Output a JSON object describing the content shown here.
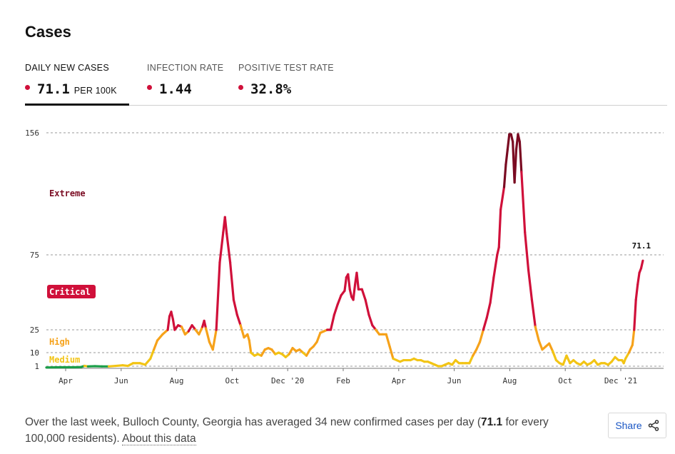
{
  "page": {
    "title": "Cases"
  },
  "metrics": [
    {
      "label": "DAILY NEW CASES",
      "value": "71.1",
      "unit": "PER 100K",
      "active": true
    },
    {
      "label": "INFECTION RATE",
      "value": "1.44",
      "unit": "",
      "active": false
    },
    {
      "label": "POSITIVE TEST RATE",
      "value": "32.8%",
      "unit": "",
      "active": false
    }
  ],
  "colors": {
    "accent": "#d0103a",
    "extreme": "#7a0b22",
    "critical": "#d0103a",
    "high": "#f6a21a",
    "medium": "#f2c415",
    "low": "#1a9e48"
  },
  "chart_data": {
    "type": "line",
    "y_ticks": [
      1,
      10,
      25,
      75,
      156
    ],
    "y_range": [
      0,
      156
    ],
    "x_ticks": [
      "Apr",
      "Jun",
      "Aug",
      "Oct",
      "Dec '20",
      "Feb",
      "Apr",
      "Jun",
      "Aug",
      "Oct",
      "Dec '21"
    ],
    "zones": [
      {
        "name": "Extreme",
        "color": "#7a0b22"
      },
      {
        "name": "Critical",
        "color": "#d0103a"
      },
      {
        "name": "High",
        "color": "#f6a21a"
      },
      {
        "name": "Medium",
        "color": "#f2c415"
      }
    ],
    "end_label": "71.1",
    "series": [
      {
        "values": [
          [
            0,
            0.4
          ],
          [
            8,
            0.5
          ],
          [
            16,
            0.5
          ],
          [
            20,
            0.6
          ],
          [
            22,
            1.2
          ],
          [
            24,
            0.9
          ],
          [
            28,
            1.0
          ],
          [
            32,
            0.9
          ],
          [
            36,
            0.9
          ],
          [
            40,
            1.2
          ],
          [
            44,
            1.6
          ],
          [
            47,
            1.2
          ],
          [
            50,
            3
          ],
          [
            54,
            3
          ],
          [
            57,
            2
          ],
          [
            60,
            6
          ],
          [
            62,
            12
          ],
          [
            64,
            18
          ],
          [
            67,
            22
          ],
          [
            70,
            25
          ],
          [
            71,
            34
          ],
          [
            72,
            37
          ],
          [
            73,
            32
          ],
          [
            74,
            25
          ],
          [
            76,
            28
          ],
          [
            78,
            27
          ],
          [
            80,
            22
          ],
          [
            82,
            24
          ],
          [
            84,
            28
          ],
          [
            86,
            25
          ],
          [
            88,
            22
          ],
          [
            90,
            27
          ],
          [
            91,
            31
          ],
          [
            92,
            26
          ],
          [
            94,
            17
          ],
          [
            96,
            12
          ],
          [
            98,
            25
          ],
          [
            100,
            70
          ],
          [
            102,
            90
          ],
          [
            103,
            100
          ],
          [
            104,
            89
          ],
          [
            106,
            70
          ],
          [
            108,
            45
          ],
          [
            110,
            35
          ],
          [
            112,
            28
          ],
          [
            114,
            20
          ],
          [
            116,
            22
          ],
          [
            117,
            18
          ],
          [
            118,
            10
          ],
          [
            120,
            8
          ],
          [
            122,
            9
          ],
          [
            124,
            8
          ],
          [
            126,
            12
          ],
          [
            128,
            13
          ],
          [
            130,
            12
          ],
          [
            132,
            9
          ],
          [
            134,
            10
          ],
          [
            136,
            9
          ],
          [
            138,
            7
          ],
          [
            140,
            9
          ],
          [
            142,
            13
          ],
          [
            144,
            11
          ],
          [
            146,
            12
          ],
          [
            148,
            10
          ],
          [
            150,
            8
          ],
          [
            152,
            12
          ],
          [
            154,
            14
          ],
          [
            156,
            17
          ],
          [
            158,
            23
          ],
          [
            160,
            24
          ],
          [
            162,
            25
          ],
          [
            164,
            25
          ],
          [
            166,
            35
          ],
          [
            168,
            42
          ],
          [
            170,
            48
          ],
          [
            172,
            51
          ],
          [
            173,
            60
          ],
          [
            174,
            62
          ],
          [
            175,
            52
          ],
          [
            176,
            47
          ],
          [
            177,
            45
          ],
          [
            178,
            55
          ],
          [
            179,
            63
          ],
          [
            180,
            52
          ],
          [
            182,
            52
          ],
          [
            184,
            45
          ],
          [
            186,
            35
          ],
          [
            188,
            28
          ],
          [
            190,
            25
          ],
          [
            192,
            22
          ],
          [
            194,
            22
          ],
          [
            196,
            22
          ],
          [
            198,
            14
          ],
          [
            200,
            6
          ],
          [
            202,
            5
          ],
          [
            204,
            4
          ],
          [
            206,
            5
          ],
          [
            208,
            5
          ],
          [
            210,
            5
          ],
          [
            212,
            6
          ],
          [
            214,
            5
          ],
          [
            216,
            5
          ],
          [
            218,
            4
          ],
          [
            220,
            4
          ],
          [
            222,
            3
          ],
          [
            224,
            2
          ],
          [
            226,
            1
          ],
          [
            228,
            1
          ],
          [
            230,
            2
          ],
          [
            232,
            3
          ],
          [
            234,
            2
          ],
          [
            236,
            5
          ],
          [
            238,
            3
          ],
          [
            240,
            3
          ],
          [
            242,
            3
          ],
          [
            244,
            3
          ],
          [
            246,
            8
          ],
          [
            248,
            12
          ],
          [
            250,
            17
          ],
          [
            252,
            25
          ],
          [
            254,
            33
          ],
          [
            256,
            43
          ],
          [
            258,
            60
          ],
          [
            260,
            75
          ],
          [
            261,
            80
          ],
          [
            262,
            105
          ],
          [
            264,
            120
          ],
          [
            265,
            135
          ],
          [
            266,
            145
          ],
          [
            267,
            155
          ],
          [
            268,
            155
          ],
          [
            269,
            150
          ],
          [
            270,
            123
          ],
          [
            271,
            145
          ],
          [
            272,
            155
          ],
          [
            273,
            150
          ],
          [
            274,
            130
          ],
          [
            276,
            90
          ],
          [
            278,
            65
          ],
          [
            280,
            45
          ],
          [
            282,
            27
          ],
          [
            284,
            18
          ],
          [
            286,
            12
          ],
          [
            288,
            14
          ],
          [
            290,
            16
          ],
          [
            292,
            11
          ],
          [
            294,
            5
          ],
          [
            296,
            3
          ],
          [
            298,
            2
          ],
          [
            300,
            8
          ],
          [
            302,
            3
          ],
          [
            304,
            5
          ],
          [
            306,
            3
          ],
          [
            308,
            2
          ],
          [
            310,
            4
          ],
          [
            312,
            2
          ],
          [
            314,
            3
          ],
          [
            316,
            5
          ],
          [
            318,
            2
          ],
          [
            320,
            3
          ],
          [
            322,
            3
          ],
          [
            324,
            2
          ],
          [
            326,
            4
          ],
          [
            328,
            7
          ],
          [
            330,
            5
          ],
          [
            332,
            5
          ],
          [
            333,
            3
          ],
          [
            334,
            6
          ],
          [
            336,
            10
          ],
          [
            338,
            15
          ],
          [
            339,
            25
          ],
          [
            340,
            45
          ],
          [
            341,
            55
          ],
          [
            342,
            63
          ],
          [
            343,
            66
          ],
          [
            344,
            71.1
          ]
        ]
      }
    ]
  },
  "summary": {
    "before": "Over the last week, Bulloch County, Georgia has averaged 34 new confirmed cases per day (",
    "value": "71.1",
    "after": " for every 100,000 residents). ",
    "link": "About this data"
  },
  "share": {
    "label": "Share",
    "icon": "share-icon"
  }
}
